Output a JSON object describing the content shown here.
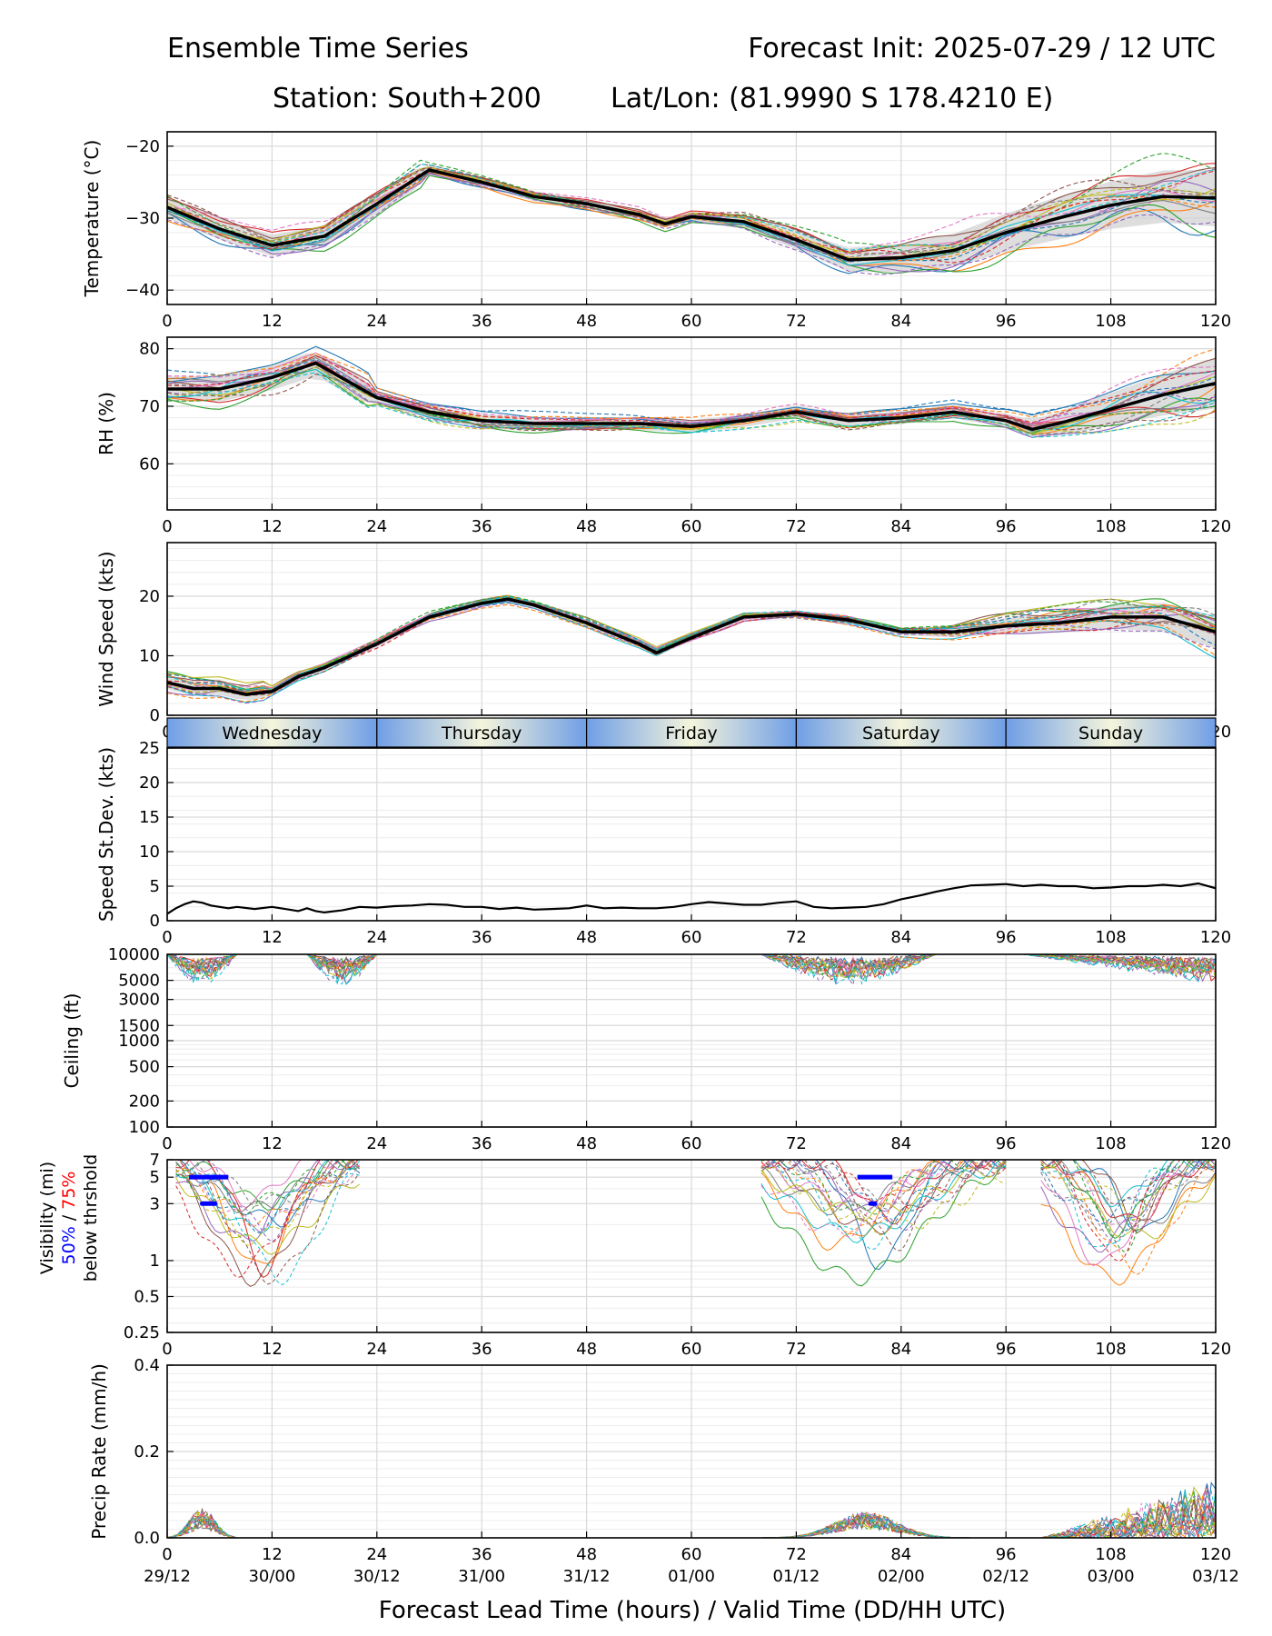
{
  "header": {
    "title_left": "Ensemble Time Series",
    "title_right": "Forecast Init: 2025-07-29 / 12 UTC",
    "station": "Station: South+200",
    "latlon": "Lat/Lon: (81.9990 S 178.4210 E)"
  },
  "colors": {
    "ensemble": [
      "#1f77b4",
      "#ff7f0e",
      "#2ca02c",
      "#d62728",
      "#9467bd",
      "#8c564b",
      "#e377c2",
      "#7f7f7f",
      "#bcbd22",
      "#17becf"
    ],
    "mean": "#000000",
    "spread": "#d3d3d3",
    "vis_50": "#0000ff",
    "vis_75": "#ff0000",
    "day_light": "#f5f5dc",
    "day_dark": "#6f9ee6"
  },
  "x_axis": {
    "ticks": [
      0,
      12,
      24,
      36,
      48,
      60,
      72,
      84,
      96,
      108,
      120
    ],
    "valid_times": [
      "29/12",
      "30/00",
      "30/12",
      "31/00",
      "31/12",
      "01/00",
      "01/12",
      "02/00",
      "02/12",
      "03/00",
      "03/12"
    ],
    "xlabel": "Forecast Lead Time (hours) / Valid Time (DD/HH UTC)"
  },
  "day_labels": [
    "Wednesday",
    "Thursday",
    "Friday",
    "Saturday",
    "Sunday"
  ],
  "vis_legend": {
    "line1": "Visibility (mi)",
    "p50": "50%",
    "sep": " / ",
    "p75": "75%",
    "line3": "below thrshold"
  },
  "chart_data": [
    {
      "type": "line",
      "ylabel": "Temperature (°C)",
      "ylim": [
        -42,
        -18
      ],
      "yticks": [
        "−20",
        "−30",
        "−40"
      ],
      "ytick_values": [
        -20,
        -30,
        -40
      ],
      "mean": {
        "x": [
          0,
          6,
          12,
          18,
          24,
          30,
          36,
          42,
          48,
          54,
          57,
          60,
          66,
          72,
          78,
          84,
          90,
          96,
          102,
          108,
          114,
          120
        ],
        "y": [
          -28.5,
          -31.5,
          -33.8,
          -32.5,
          -28,
          -23.3,
          -25,
          -27,
          -28,
          -29.5,
          -30.8,
          -29.8,
          -30.5,
          -33,
          -35.8,
          -35.5,
          -34.5,
          -32,
          -30,
          -28.2,
          -27,
          -27.2
        ]
      },
      "members_note": "20 ensemble members (solid & dashed)"
    },
    {
      "type": "line",
      "ylabel": "RH (%)",
      "ylim": [
        52,
        82
      ],
      "yticks": [
        "80",
        "70",
        "60"
      ],
      "ytick_values": [
        80,
        70,
        60
      ],
      "mean": {
        "x": [
          0,
          6,
          12,
          17,
          24,
          30,
          36,
          42,
          48,
          54,
          60,
          66,
          72,
          78,
          84,
          90,
          96,
          99,
          102,
          108,
          114,
          120
        ],
        "y": [
          73,
          73,
          75,
          77.5,
          71.5,
          69,
          67.5,
          67,
          67,
          67,
          66.5,
          67.5,
          69,
          67.5,
          68,
          69,
          67.5,
          66,
          67,
          69.5,
          72,
          74
        ]
      }
    },
    {
      "type": "line",
      "ylabel": "Wind Speed (kts)",
      "ylim": [
        0,
        29
      ],
      "yticks": [
        "20",
        "10",
        "0"
      ],
      "ytick_values": [
        20,
        10,
        0
      ],
      "mean": {
        "x": [
          0,
          3,
          6,
          9,
          12,
          15,
          18,
          24,
          30,
          36,
          39,
          42,
          48,
          54,
          56,
          60,
          66,
          72,
          78,
          84,
          90,
          96,
          102,
          108,
          114,
          120
        ],
        "y": [
          5.5,
          4.5,
          4.5,
          3.5,
          4,
          6.5,
          8,
          12,
          16.5,
          18.8,
          19.5,
          18.5,
          15.5,
          12,
          10.5,
          13,
          16.5,
          17,
          16,
          14,
          14,
          15,
          15.5,
          16.5,
          16.5,
          14
        ]
      }
    },
    {
      "type": "line",
      "ylabel": "Speed St.Dev. (kts)",
      "ylim": [
        0,
        25
      ],
      "yticks": [
        "25",
        "20",
        "15",
        "10",
        "5",
        "0"
      ],
      "ytick_values": [
        25,
        20,
        15,
        10,
        5,
        0
      ],
      "x": [
        0,
        1,
        2,
        3,
        4,
        5,
        6,
        7,
        8,
        10,
        12,
        14,
        15,
        16,
        17,
        18,
        20,
        22,
        24,
        26,
        28,
        30,
        32,
        34,
        36,
        38,
        40,
        42,
        44,
        46,
        48,
        50,
        52,
        54,
        56,
        58,
        60,
        62,
        64,
        66,
        68,
        70,
        72,
        74,
        76,
        78,
        80,
        82,
        84,
        86,
        88,
        90,
        92,
        94,
        96,
        98,
        100,
        102,
        104,
        106,
        108,
        110,
        112,
        114,
        116,
        118,
        120
      ],
      "y": [
        1.0,
        1.8,
        2.4,
        2.8,
        2.6,
        2.2,
        2.0,
        1.8,
        2.0,
        1.7,
        2.0,
        1.6,
        1.4,
        1.8,
        1.4,
        1.2,
        1.5,
        2.0,
        1.9,
        2.1,
        2.2,
        2.4,
        2.3,
        2.0,
        2.0,
        1.7,
        1.9,
        1.6,
        1.7,
        1.8,
        2.2,
        1.8,
        1.9,
        1.8,
        1.8,
        2.0,
        2.4,
        2.7,
        2.5,
        2.3,
        2.3,
        2.6,
        2.8,
        2.0,
        1.8,
        1.9,
        2.0,
        2.4,
        3.1,
        3.6,
        4.2,
        4.7,
        5.1,
        5.2,
        5.3,
        5.0,
        5.2,
        5.0,
        5.0,
        4.7,
        4.8,
        5.0,
        5.0,
        5.2,
        5.0,
        5.4,
        4.7
      ]
    },
    {
      "type": "line",
      "ylabel": "Ceiling (ft)",
      "scale": "log",
      "ylim": [
        100,
        10000
      ],
      "yticks": [
        "10000",
        "5000",
        "3000",
        "1500",
        "1000",
        "500",
        "200",
        "100"
      ],
      "ytick_values": [
        10000,
        5000,
        3000,
        1500,
        1000,
        500,
        200,
        100
      ]
    },
    {
      "type": "line",
      "ylabel": "Visibility (mi)",
      "scale": "log",
      "ylim": [
        0.25,
        7
      ],
      "yticks": [
        "7",
        "5",
        "3",
        "1",
        "0.5",
        "0.25"
      ],
      "ytick_values": [
        7,
        5,
        3,
        1,
        0.5,
        0.25
      ],
      "threshold_50": [
        {
          "x0": 2.5,
          "x1": 7,
          "y": 5
        },
        {
          "x0": 79,
          "x1": 83,
          "y": 5
        }
      ],
      "threshold_75": [
        {
          "x0": 4,
          "x1": 5.5,
          "y": 3
        },
        {
          "x0": 80.5,
          "x1": 81,
          "y": 3
        }
      ]
    },
    {
      "type": "line",
      "ylabel": "Precip Rate (mm/h)",
      "ylim": [
        0,
        0.4
      ],
      "yticks": [
        "0.4",
        "0.2",
        "0.0"
      ],
      "ytick_values": [
        0.4,
        0.2,
        0.0
      ]
    }
  ]
}
